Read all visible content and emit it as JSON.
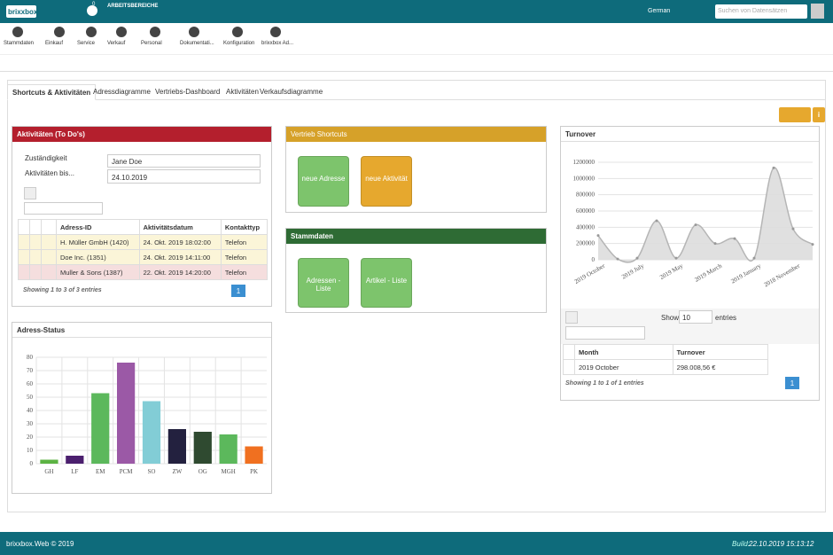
{
  "header": {
    "logo": "brixxbox",
    "notifications": "0",
    "workspaces": "ARBEITSBEREICHE",
    "language": "German",
    "search": "Suchen von Datensätzen"
  },
  "nav": [
    "Stammdaten",
    "Einkauf",
    "Service",
    "Verkauf",
    "Personal",
    "Dokumentati...",
    "Konfiguration",
    "brixxbox Ad..."
  ],
  "tabs": [
    "Shortcuts & Aktivitäten",
    "Adressdiagramme",
    "Vertriebs-Dashboard",
    "Aktivitäten",
    "Verkaufsdiagramme"
  ],
  "activities": {
    "title": "Aktivitäten (To Do's)",
    "responsible_label": "Zuständigkeit",
    "responsible": "Jane Doe",
    "until_label": "Aktivitäten bis...",
    "until": "24.10.2019",
    "table": {
      "headers": [
        "Adress-ID",
        "Aktivitätsdatum",
        "Kontakttyp"
      ],
      "rows": [
        [
          "H. Müller GmbH (1420)",
          "24. Okt. 2019 18:02:00",
          "Telefon"
        ],
        [
          "Doe Inc. (1351)",
          "24. Okt. 2019 14:11:00",
          "Telefon"
        ],
        [
          "Muller & Sons (1387)",
          "22. Okt. 2019 14:20:00",
          "Telefon"
        ]
      ]
    },
    "info": "Showing 1 to 3 of 3 entries",
    "page": "1"
  },
  "shortcuts": {
    "title": "Vertrieb Shortcuts",
    "buttons": [
      "neue Adresse",
      "neue Aktivität"
    ]
  },
  "stammdaten": {
    "title": "Stammdaten",
    "buttons": [
      "Adressen - Liste",
      "Artikel - Liste"
    ]
  },
  "turnover_table": {
    "show": "Show",
    "length": "10",
    "entries": "entries",
    "headers": [
      "Month",
      "Turnover"
    ],
    "rows": [
      [
        "2019 October",
        "298.008,56 €"
      ]
    ],
    "info": "Showing 1 to 1 of 1 entries",
    "page": "1"
  },
  "footer": {
    "copyright": "brixxbox.Web © 2019",
    "build_label": "Build:",
    "build": "22.10.2019 15:13:12"
  },
  "chart_data": [
    {
      "type": "bar",
      "title": "Adress-Status",
      "categories": [
        "GH",
        "LF",
        "EM",
        "PCM",
        "SO",
        "ZW",
        "OG",
        "MGH",
        "PK"
      ],
      "values": [
        3,
        6,
        53,
        76,
        47,
        26,
        24,
        22,
        13
      ],
      "colors": [
        "#5cb343",
        "#4b1f6e",
        "#5cb85c",
        "#9b59a6",
        "#82cdd6",
        "#23213f",
        "#2f4a30",
        "#5cb85c",
        "#f07020"
      ],
      "ylim": [
        0,
        80
      ],
      "yticks": [
        0,
        10,
        20,
        30,
        40,
        50,
        60,
        70,
        80
      ],
      "grid": true
    },
    {
      "type": "area",
      "title": "Turnover",
      "categories": [
        "2019 October",
        null,
        "2019 July",
        null,
        "2019 May",
        null,
        "2019 March",
        null,
        "2019 January",
        null,
        "2018 November",
        null
      ],
      "values": [
        298008.56,
        10000,
        20000,
        480000,
        20000,
        430000,
        200000,
        260000,
        20000,
        1130000,
        380000,
        190000
      ],
      "color": "#b5b5b5",
      "ylim": [
        0,
        1200000
      ],
      "yticks": [
        0,
        200000,
        400000,
        600000,
        800000,
        1000000,
        1200000
      ],
      "grid": true
    }
  ]
}
